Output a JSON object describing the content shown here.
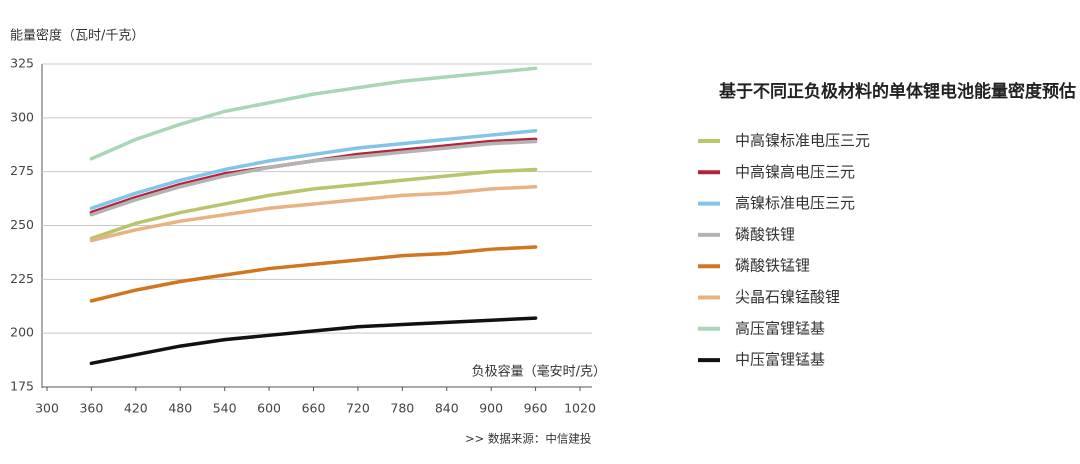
{
  "chart_data": {
    "type": "line",
    "title": "基于不同正负极材料的单体锂电池能量密度预估",
    "y_label": "能量密度（瓦时/千克）",
    "x_label": "负极容量（毫安时/克）",
    "source": ">>  数据来源：中信建投",
    "x": [
      360,
      420,
      480,
      540,
      600,
      660,
      720,
      780,
      840,
      900,
      960
    ],
    "series": [
      {
        "name": "中高镍标准电压三元",
        "color": "#b9c46c",
        "values": [
          244,
          251,
          256,
          260,
          264,
          267,
          269,
          271,
          273,
          275,
          276
        ]
      },
      {
        "name": "中高镍高电压三元",
        "color": "#b3233b",
        "values": [
          256,
          263,
          269,
          274,
          277,
          280,
          283,
          285,
          287,
          289,
          290
        ]
      },
      {
        "name": "高镍标准电压三元",
        "color": "#82c5e8",
        "values": [
          258,
          265,
          271,
          276,
          280,
          283,
          286,
          288,
          290,
          292,
          294
        ]
      },
      {
        "name": "磷酸铁锂",
        "color": "#b3b3b3",
        "values": [
          255,
          262,
          268,
          273,
          277,
          280,
          282,
          284,
          286,
          288,
          289
        ]
      },
      {
        "name": "磷酸铁锰锂",
        "color": "#d07520",
        "values": [
          215,
          220,
          224,
          227,
          230,
          232,
          234,
          236,
          237,
          239,
          240
        ]
      },
      {
        "name": "尖晶石镍锰酸锂",
        "color": "#e8b383",
        "values": [
          243,
          248,
          252,
          255,
          258,
          260,
          262,
          264,
          265,
          267,
          268
        ]
      },
      {
        "name": "高压富锂锰基",
        "color": "#a9d6b6",
        "values": [
          281,
          290,
          297,
          303,
          307,
          311,
          314,
          317,
          319,
          321,
          323
        ]
      },
      {
        "name": "中压富锂锰基",
        "color": "#111111",
        "values": [
          186,
          190,
          194,
          197,
          199,
          201,
          203,
          204,
          205,
          206,
          207
        ]
      }
    ],
    "xlim": [
      300,
      1020
    ],
    "xticks": [
      300,
      360,
      420,
      480,
      540,
      600,
      660,
      720,
      780,
      840,
      900,
      960,
      1020
    ],
    "ylim": [
      175,
      325
    ],
    "yticks": [
      175,
      200,
      225,
      250,
      275,
      300,
      325
    ],
    "grid": true
  }
}
